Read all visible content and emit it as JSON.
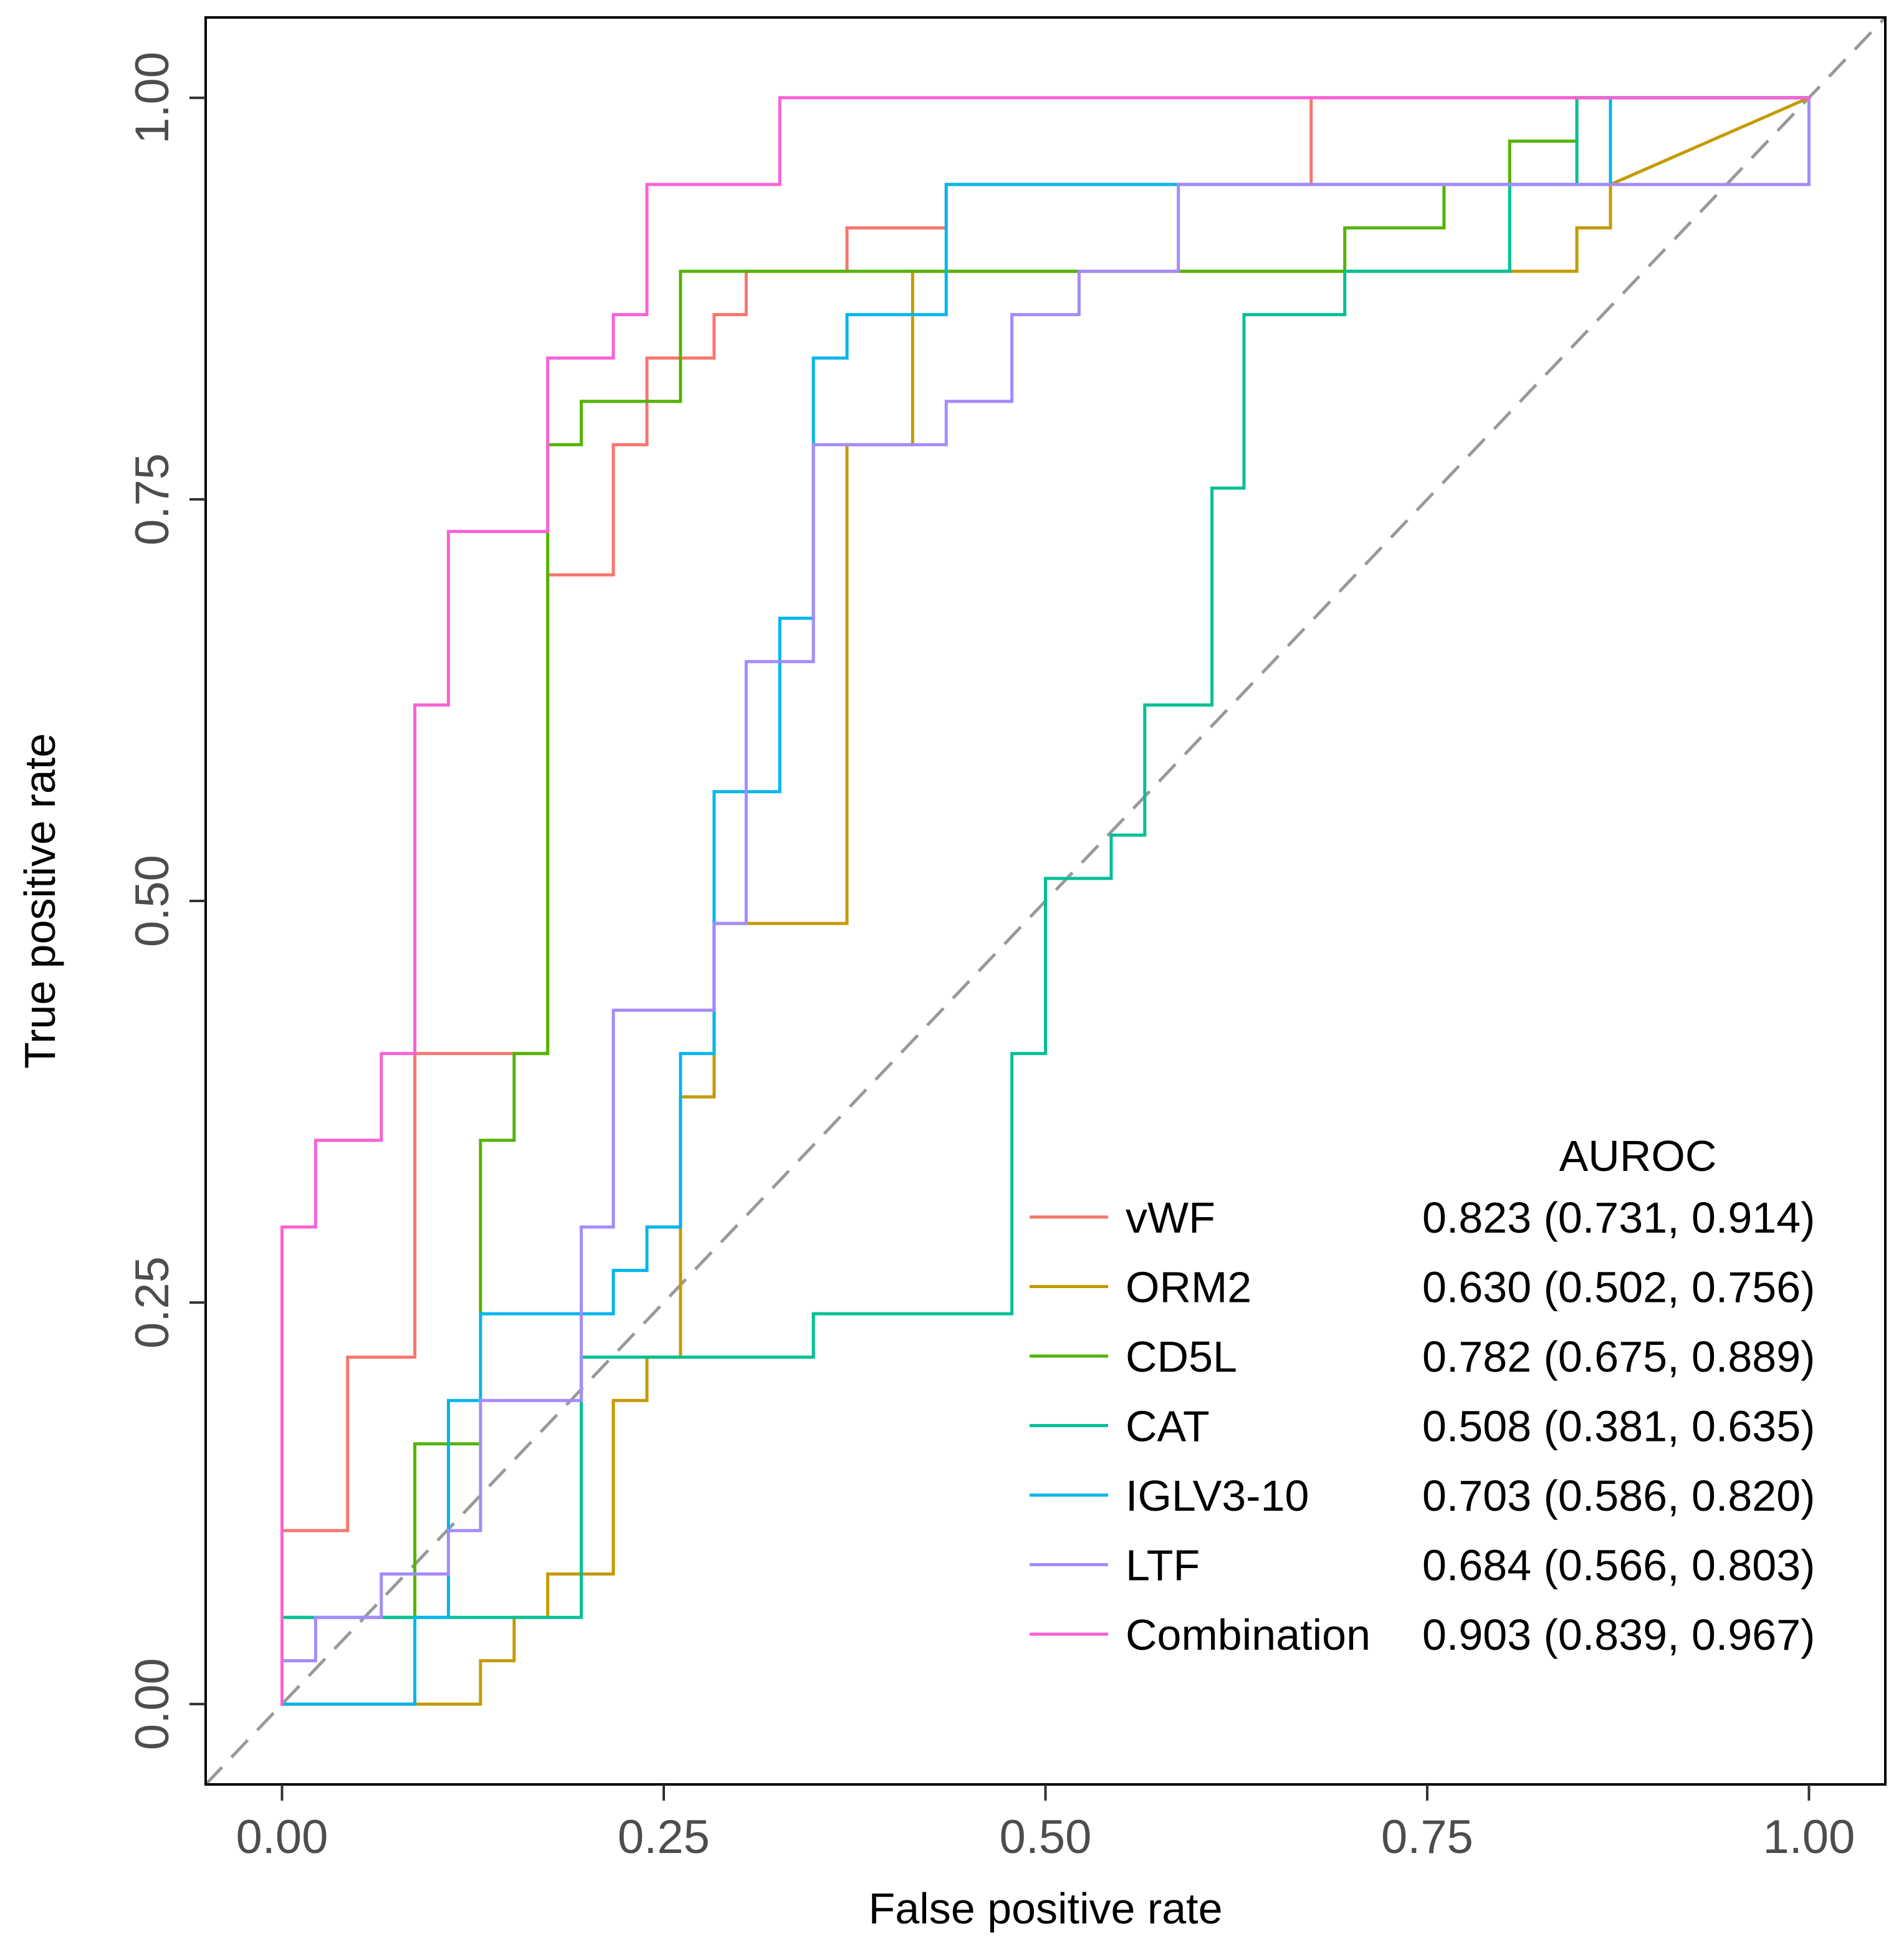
{
  "chart_data": {
    "type": "line",
    "title": "",
    "xlabel": "False positive rate",
    "ylabel": "True positive rate",
    "xlim": [
      -0.05,
      1.05
    ],
    "ylim": [
      -0.05,
      1.05
    ],
    "xticks": [
      0,
      0.25,
      0.5,
      0.75,
      1
    ],
    "yticks": [
      0,
      0.25,
      0.5,
      0.75,
      1
    ],
    "xtick_labels": [
      "0.00",
      "0.25",
      "0.50",
      "0.75",
      "1.00"
    ],
    "ytick_labels": [
      "0.00",
      "0.25",
      "0.50",
      "0.75",
      "1.00"
    ],
    "reference_line": {
      "style": "dashed",
      "color": "#999999",
      "points": [
        [
          -0.05,
          -0.05
        ],
        [
          1.05,
          1.05
        ]
      ]
    },
    "legend": {
      "title": "AUROC",
      "placement": "bottom-right"
    },
    "series": [
      {
        "name": "vWF",
        "auroc": "0.823 (0.731, 0.914)",
        "color": "#F8766D",
        "x": [
          0,
          0,
          0.043,
          0.043,
          0.087,
          0.087,
          0.174,
          0.174,
          0.217,
          0.217,
          0.239,
          0.239,
          0.283,
          0.283,
          0.304,
          0.304,
          0.37,
          0.37,
          0.435,
          0.435,
          0.674,
          0.674,
          1
        ],
        "y": [
          0,
          0.108,
          0.108,
          0.216,
          0.216,
          0.405,
          0.405,
          0.703,
          0.703,
          0.784,
          0.784,
          0.838,
          0.838,
          0.865,
          0.865,
          0.892,
          0.892,
          0.919,
          0.919,
          0.946,
          0.946,
          1,
          1
        ]
      },
      {
        "name": "ORM2",
        "auroc": "0.630 (0.502, 0.756)",
        "color": "#C49A00",
        "x": [
          0,
          0.087,
          0.13,
          0.13,
          0.152,
          0.152,
          0.174,
          0.174,
          0.217,
          0.217,
          0.239,
          0.239,
          0.261,
          0.261,
          0.283,
          0.283,
          0.37,
          0.37,
          0.413,
          0.413,
          0.804,
          0.848,
          0.848,
          0.87,
          0.87,
          1
        ],
        "y": [
          0,
          0,
          0,
          0.027,
          0.027,
          0.054,
          0.054,
          0.081,
          0.081,
          0.189,
          0.189,
          0.216,
          0.216,
          0.378,
          0.378,
          0.486,
          0.486,
          0.784,
          0.784,
          0.892,
          0.892,
          0.892,
          0.919,
          0.919,
          0.946,
          1
        ]
      },
      {
        "name": "CD5L",
        "auroc": "0.782 (0.675, 0.889)",
        "color": "#53B400",
        "x": [
          0,
          0,
          0.087,
          0.087,
          0.13,
          0.13,
          0.152,
          0.152,
          0.174,
          0.174,
          0.196,
          0.196,
          0.261,
          0.261,
          0.696,
          0.696,
          0.761,
          0.761,
          0.804,
          0.804,
          0.848,
          0.848,
          1
        ],
        "y": [
          0,
          0.054,
          0.054,
          0.162,
          0.162,
          0.351,
          0.351,
          0.405,
          0.405,
          0.784,
          0.784,
          0.811,
          0.811,
          0.892,
          0.892,
          0.919,
          0.919,
          0.946,
          0.946,
          0.973,
          0.973,
          1,
          1
        ]
      },
      {
        "name": "CAT",
        "auroc": "0.508 (0.381, 0.635)",
        "color": "#00C094",
        "x": [
          0,
          0,
          0.196,
          0.196,
          0.348,
          0.348,
          0.478,
          0.478,
          0.5,
          0.5,
          0.543,
          0.543,
          0.565,
          0.565,
          0.609,
          0.609,
          0.63,
          0.63,
          0.696,
          0.696,
          0.804,
          0.804,
          0.848,
          0.848,
          1
        ],
        "y": [
          0,
          0.054,
          0.054,
          0.216,
          0.216,
          0.243,
          0.243,
          0.405,
          0.405,
          0.514,
          0.514,
          0.541,
          0.541,
          0.622,
          0.622,
          0.757,
          0.757,
          0.865,
          0.865,
          0.892,
          0.892,
          0.946,
          0.946,
          1,
          1
        ]
      },
      {
        "name": "IGLV3-10",
        "auroc": "0.703 (0.586, 0.820)",
        "color": "#00B6EB",
        "x": [
          0,
          0.087,
          0.087,
          0.109,
          0.109,
          0.13,
          0.13,
          0.217,
          0.217,
          0.239,
          0.239,
          0.261,
          0.261,
          0.283,
          0.283,
          0.326,
          0.326,
          0.348,
          0.348,
          0.37,
          0.37,
          0.435,
          0.435,
          0.87,
          0.87,
          1
        ],
        "y": [
          0,
          0,
          0.054,
          0.054,
          0.189,
          0.189,
          0.243,
          0.243,
          0.27,
          0.27,
          0.297,
          0.297,
          0.405,
          0.405,
          0.568,
          0.568,
          0.676,
          0.676,
          0.838,
          0.838,
          0.865,
          0.865,
          0.946,
          0.946,
          1,
          1
        ]
      },
      {
        "name": "LTF",
        "auroc": "0.684 (0.566, 0.803)",
        "color": "#A58AFF",
        "x": [
          0,
          0,
          0.022,
          0.022,
          0.065,
          0.065,
          0.109,
          0.109,
          0.13,
          0.13,
          0.196,
          0.196,
          0.217,
          0.217,
          0.283,
          0.283,
          0.304,
          0.304,
          0.348,
          0.348,
          0.435,
          0.435,
          0.478,
          0.478,
          0.522,
          0.522,
          0.587,
          0.587,
          1,
          1
        ],
        "y": [
          0,
          0.027,
          0.027,
          0.054,
          0.054,
          0.081,
          0.081,
          0.108,
          0.108,
          0.189,
          0.189,
          0.297,
          0.297,
          0.432,
          0.432,
          0.486,
          0.486,
          0.649,
          0.649,
          0.784,
          0.784,
          0.811,
          0.811,
          0.865,
          0.865,
          0.892,
          0.892,
          0.946,
          0.946,
          1
        ]
      },
      {
        "name": "Combination",
        "auroc": "0.903 (0.839, 0.967)",
        "color": "#FB61D7",
        "x": [
          0,
          0,
          0.022,
          0.022,
          0.065,
          0.065,
          0.087,
          0.087,
          0.109,
          0.109,
          0.174,
          0.174,
          0.217,
          0.217,
          0.239,
          0.239,
          0.326,
          0.326,
          1
        ],
        "y": [
          0,
          0.297,
          0.297,
          0.351,
          0.351,
          0.405,
          0.405,
          0.622,
          0.622,
          0.73,
          0.73,
          0.838,
          0.838,
          0.865,
          0.865,
          0.946,
          0.946,
          1,
          1
        ]
      }
    ]
  }
}
